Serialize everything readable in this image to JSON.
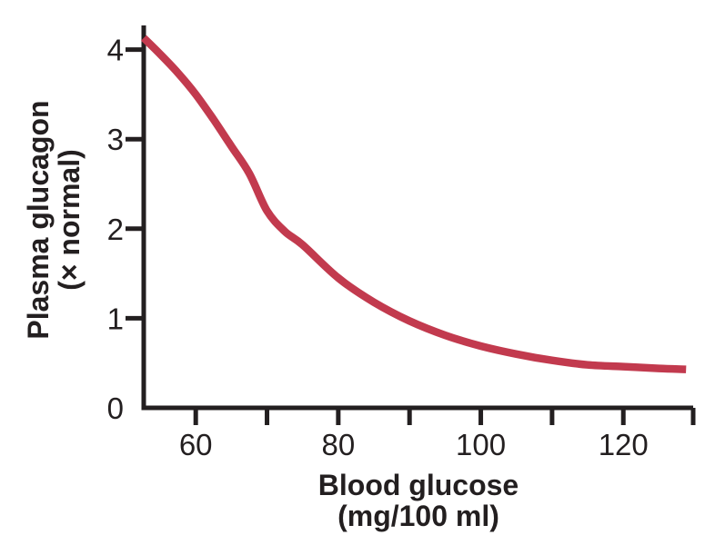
{
  "chart_data": {
    "type": "line",
    "title": "",
    "xlabel_line1": "Blood glucose",
    "xlabel_line2": "(mg/100 ml)",
    "ylabel_line1": "Plasma glucagon",
    "ylabel_line2": "(× normal)",
    "xlim": [
      52.7,
      129.8
    ],
    "ylim": [
      0,
      4.27
    ],
    "grid": false,
    "legend": false,
    "background_color": "#ffffff",
    "axis_color": "#231f20",
    "x_ticks": [
      {
        "value": 60,
        "label": "60"
      },
      {
        "value": 70,
        "label": ""
      },
      {
        "value": 80,
        "label": "80"
      },
      {
        "value": 90,
        "label": ""
      },
      {
        "value": 100,
        "label": "100"
      },
      {
        "value": 110,
        "label": ""
      },
      {
        "value": 120,
        "label": "120"
      },
      {
        "value": 129.8,
        "label": ""
      }
    ],
    "y_ticks": [
      {
        "value": 0,
        "label": "0",
        "mark": false
      },
      {
        "value": 1,
        "label": "1",
        "mark": true
      },
      {
        "value": 2,
        "label": "2",
        "mark": true
      },
      {
        "value": 3,
        "label": "3",
        "mark": true
      },
      {
        "value": 4,
        "label": "4",
        "mark": true
      }
    ],
    "series": [
      {
        "name": "plasma-glucagon",
        "color": "#c23a4e",
        "points": [
          [
            52.7,
            4.13
          ],
          [
            55,
            3.95
          ],
          [
            57.5,
            3.74
          ],
          [
            60,
            3.5
          ],
          [
            62.5,
            3.22
          ],
          [
            65,
            2.92
          ],
          [
            67.5,
            2.62
          ],
          [
            70,
            2.2
          ],
          [
            72.5,
            1.97
          ],
          [
            75,
            1.82
          ],
          [
            80,
            1.45
          ],
          [
            85,
            1.18
          ],
          [
            90,
            0.97
          ],
          [
            95,
            0.81
          ],
          [
            100,
            0.69
          ],
          [
            105,
            0.6
          ],
          [
            110,
            0.53
          ],
          [
            115,
            0.48
          ],
          [
            120,
            0.46
          ],
          [
            125,
            0.44
          ],
          [
            128.8,
            0.43
          ]
        ]
      }
    ]
  }
}
